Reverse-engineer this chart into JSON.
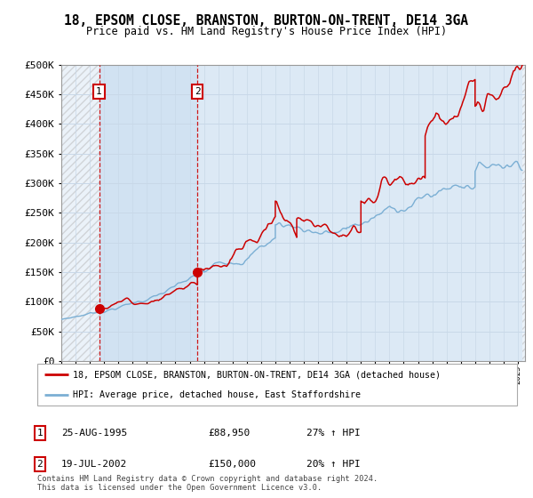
{
  "title": "18, EPSOM CLOSE, BRANSTON, BURTON-ON-TRENT, DE14 3GA",
  "subtitle": "Price paid vs. HM Land Registry's House Price Index (HPI)",
  "ylim": [
    0,
    500000
  ],
  "yticks": [
    0,
    50000,
    100000,
    150000,
    200000,
    250000,
    300000,
    350000,
    400000,
    450000,
    500000
  ],
  "ytick_labels": [
    "£0",
    "£50K",
    "£100K",
    "£150K",
    "£200K",
    "£250K",
    "£300K",
    "£350K",
    "£400K",
    "£450K",
    "£500K"
  ],
  "xlim_start": 1993.0,
  "xlim_end": 2025.5,
  "plot_bg_color": "#dce9f5",
  "grid_color": "#c8d8e8",
  "sale1_x": 1995.647,
  "sale1_y": 88950,
  "sale1_label": "1",
  "sale1_date": "25-AUG-1995",
  "sale1_price": "£88,950",
  "sale1_hpi": "27% ↑ HPI",
  "sale2_x": 2002.542,
  "sale2_y": 150000,
  "sale2_label": "2",
  "sale2_date": "19-JUL-2002",
  "sale2_price": "£150,000",
  "sale2_hpi": "20% ↑ HPI",
  "legend_line1": "18, EPSOM CLOSE, BRANSTON, BURTON-ON-TRENT, DE14 3GA (detached house)",
  "legend_line2": "HPI: Average price, detached house, East Staffordshire",
  "footer": "Contains HM Land Registry data © Crown copyright and database right 2024.\nThis data is licensed under the Open Government Licence v3.0.",
  "line_color": "#cc0000",
  "hpi_color": "#7bafd4",
  "hatch_color": "#bbbbbb",
  "between_shade": "#c8ddf0"
}
